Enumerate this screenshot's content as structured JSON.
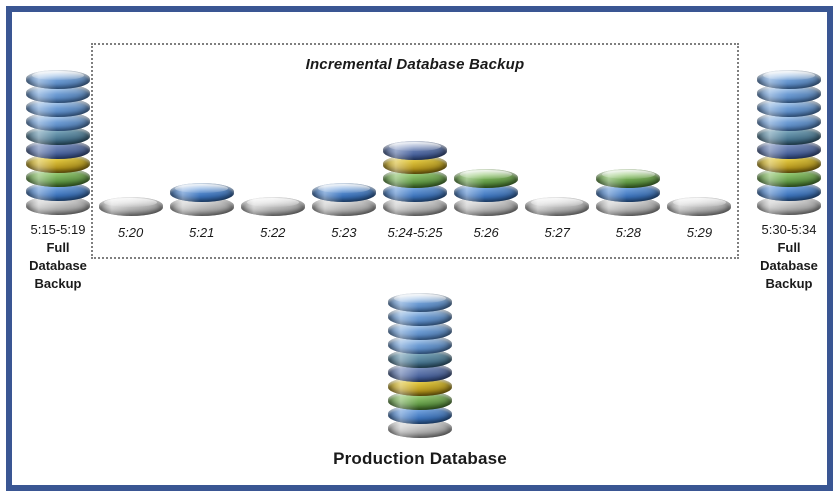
{
  "diagram": {
    "title": "Incremental Database Backup",
    "left_backup": {
      "time": "5:15-5:19",
      "label_lines": [
        "Full",
        "Database",
        "Backup"
      ]
    },
    "right_backup": {
      "time": "5:30-5:34",
      "label_lines": [
        "Full",
        "Database",
        "Backup"
      ]
    },
    "production": {
      "label": "Production Database"
    },
    "full_stack_disks": [
      "gray",
      "blue",
      "green",
      "gold",
      "navy",
      "teal",
      "lightblue",
      "lightblue",
      "lightblue",
      "lightblue"
    ],
    "incremental": [
      {
        "time": "5:20",
        "disks": [
          "gray"
        ]
      },
      {
        "time": "5:21",
        "disks": [
          "gray",
          "blue"
        ]
      },
      {
        "time": "5:22",
        "disks": [
          "gray"
        ]
      },
      {
        "time": "5:23",
        "disks": [
          "gray",
          "blue"
        ]
      },
      {
        "time": "5:24-5:25",
        "disks": [
          "gray",
          "blue",
          "green",
          "gold",
          "navy"
        ]
      },
      {
        "time": "5:26",
        "disks": [
          "gray",
          "blue",
          "green"
        ]
      },
      {
        "time": "5:27",
        "disks": [
          "gray"
        ]
      },
      {
        "time": "5:28",
        "disks": [
          "gray",
          "blue",
          "green"
        ]
      },
      {
        "time": "5:29",
        "disks": [
          "gray"
        ]
      }
    ],
    "colors": {
      "frame_border": "#3a5693",
      "dotted_border": "#7f7f7f",
      "disk_gray": "#b5b5b5",
      "disk_blue": "#3d74bc",
      "disk_green": "#5b9340",
      "disk_gold": "#c9a51e",
      "disk_navy": "#47619c",
      "disk_teal": "#44718c",
      "disk_lightblue": "#6d9cd4"
    }
  }
}
